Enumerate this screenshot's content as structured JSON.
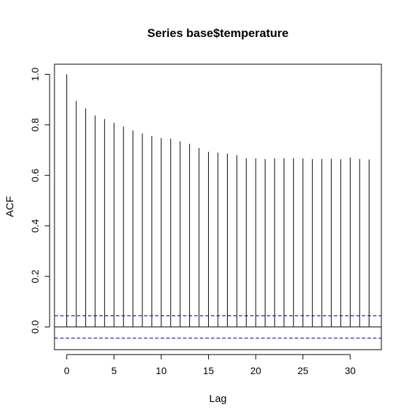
{
  "chart_data": {
    "type": "bar",
    "title": "Series  base$temperature",
    "xlabel": "Lag",
    "ylabel": "ACF",
    "x": [
      0,
      1,
      2,
      3,
      4,
      5,
      6,
      7,
      8,
      9,
      10,
      11,
      12,
      13,
      14,
      15,
      16,
      17,
      18,
      19,
      20,
      21,
      22,
      23,
      24,
      25,
      26,
      27,
      28,
      29,
      30,
      31,
      32
    ],
    "values": [
      1.0,
      0.895,
      0.865,
      0.837,
      0.823,
      0.808,
      0.793,
      0.778,
      0.766,
      0.756,
      0.748,
      0.745,
      0.735,
      0.725,
      0.708,
      0.693,
      0.69,
      0.686,
      0.68,
      0.668,
      0.667,
      0.665,
      0.668,
      0.668,
      0.668,
      0.667,
      0.665,
      0.665,
      0.666,
      0.664,
      0.67,
      0.665,
      0.663
    ],
    "conf_limit": 0.044,
    "xlim": [
      -1.3,
      33.3
    ],
    "ylim": [
      -0.09,
      1.04
    ],
    "xticks": [
      0,
      5,
      10,
      15,
      20,
      25,
      30
    ],
    "yticks": [
      0.0,
      0.2,
      0.4,
      0.6,
      0.8,
      1.0
    ],
    "ytick_labels": [
      "0.0",
      "0.2",
      "0.4",
      "0.6",
      "0.8",
      "1.0"
    ],
    "grid": false,
    "colors": {
      "bars": "#000000",
      "conf_band": "#000080",
      "frame": "#000000"
    }
  }
}
